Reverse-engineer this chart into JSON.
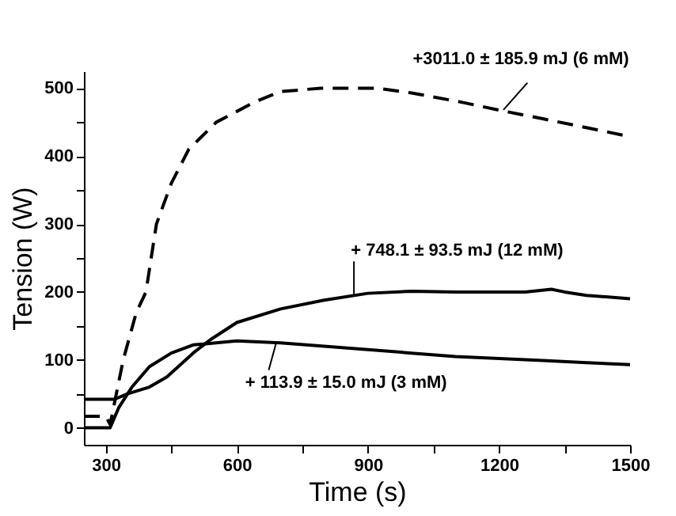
{
  "chart_data": {
    "type": "line",
    "xlabel": "Time (s)",
    "ylabel": "Tension (W)",
    "xlim": [
      250,
      1500
    ],
    "ylim": [
      -25,
      525
    ],
    "xticks": [
      300,
      {
        "value": 450,
        "label": null
      },
      600,
      {
        "value": 750,
        "label": null
      },
      900,
      {
        "value": 1050,
        "label": null
      },
      1200,
      {
        "value": 1350,
        "label": null
      },
      1500
    ],
    "yticks": [
      0,
      {
        "value": 50,
        "label": null
      },
      100,
      {
        "value": 150,
        "label": null
      },
      200,
      {
        "value": 250,
        "label": null
      },
      300,
      {
        "value": 350,
        "label": null
      },
      400,
      {
        "value": 450,
        "label": null
      },
      500
    ],
    "grid": false,
    "series": [
      {
        "color": "#000000",
        "line_style": "dashed",
        "x": [
          250,
          300,
          310,
          340,
          370,
          392,
          416,
          450,
          490,
          553,
          642,
          700,
          792,
          922,
          1000,
          1110,
          1213,
          1300,
          1400,
          1490
        ],
        "values": [
          17,
          17,
          5,
          100,
          170,
          200,
          300,
          360,
          410,
          450,
          480,
          495,
          500,
          500,
          493,
          480,
          466,
          455,
          442,
          430
        ]
      },
      {
        "color": "#000000",
        "line_style": "solid",
        "x": [
          250,
          320,
          350,
          400,
          440,
          500,
          540,
          600,
          700,
          800,
          900,
          1000,
          1100,
          1200,
          1260,
          1290,
          1320,
          1350,
          1400,
          1500
        ],
        "values": [
          42,
          42,
          50,
          60,
          75,
          110,
          130,
          155,
          175,
          188,
          198,
          201,
          200,
          200,
          200,
          202,
          204,
          200,
          195,
          190
        ]
      },
      {
        "color": "#000000",
        "line_style": "solid",
        "x": [
          250,
          310,
          330,
          360,
          400,
          450,
          500,
          600,
          700,
          800,
          900,
          1000,
          1100,
          1200,
          1300,
          1400,
          1500
        ],
        "values": [
          0,
          0,
          30,
          60,
          90,
          110,
          122,
          128,
          125,
          120,
          115,
          110,
          105,
          102,
          99,
          96,
          93
        ]
      }
    ],
    "annotations": [
      {
        "text": "+3011.0 ± 185.9 mJ     (6 mM)",
        "x": 1210,
        "y": 468
      },
      {
        "text": "+ 748.1 ± 93.5 mJ     (12 mM)",
        "x": 868,
        "y": 196
      },
      {
        "text": "+ 113.9 ± 15.0 mJ     (3 mM)",
        "x": 690,
        "y": 125
      }
    ]
  }
}
